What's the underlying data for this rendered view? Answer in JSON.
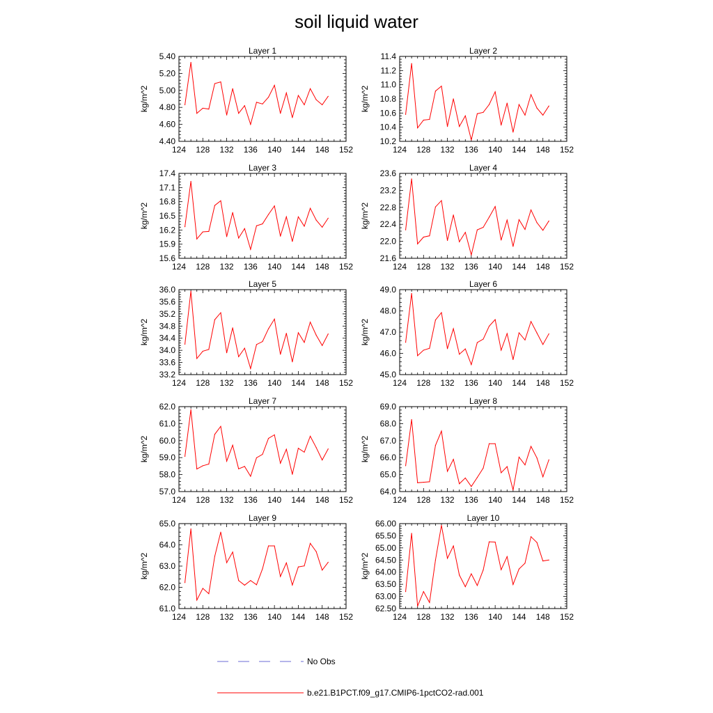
{
  "title": "soil liquid water",
  "legend": {
    "no_obs_label": "No Obs",
    "series_label": "b.e21.B1PCT.f09_g17.CMIP6-1pctCO2-rad.001",
    "no_obs_color": "#6b6bd6",
    "series_color": "#ff0000"
  },
  "colors": {
    "line": "#ff0000",
    "axis": "#000000"
  },
  "chart_data": [
    {
      "type": "line",
      "title": "Layer 1",
      "ylabel": "kg/m^2",
      "xlim": [
        124,
        152
      ],
      "xticks": [
        "124",
        "128",
        "132",
        "136",
        "140",
        "144",
        "148",
        "152"
      ],
      "ylim": [
        4.4,
        5.4
      ],
      "yticks": [
        "4.40",
        "4.60",
        "4.80",
        "5.00",
        "5.20",
        "5.40"
      ],
      "x": [
        125,
        126,
        127,
        128,
        129,
        130,
        131,
        132,
        133,
        134,
        135,
        136,
        137,
        138,
        139,
        140,
        141,
        142,
        143,
        144,
        145,
        146,
        147,
        148,
        149
      ],
      "y": [
        4.83,
        5.33,
        4.73,
        4.79,
        4.78,
        5.08,
        5.1,
        4.71,
        5.02,
        4.73,
        4.82,
        4.6,
        4.86,
        4.84,
        4.92,
        5.06,
        4.73,
        4.97,
        4.68,
        4.94,
        4.83,
        5.02,
        4.89,
        4.83,
        4.93
      ]
    },
    {
      "type": "line",
      "title": "Layer 2",
      "ylabel": "kg/m^2",
      "xlim": [
        124,
        152
      ],
      "xticks": [
        "124",
        "128",
        "132",
        "136",
        "140",
        "144",
        "148",
        "152"
      ],
      "ylim": [
        10.2,
        11.4
      ],
      "yticks": [
        "10.2",
        "10.4",
        "10.6",
        "10.8",
        "11.0",
        "11.2",
        "11.4"
      ],
      "x": [
        125,
        126,
        127,
        128,
        129,
        130,
        131,
        132,
        133,
        134,
        135,
        136,
        137,
        138,
        139,
        140,
        141,
        142,
        143,
        144,
        145,
        146,
        147,
        148,
        149
      ],
      "y": [
        10.58,
        11.3,
        10.39,
        10.5,
        10.51,
        10.91,
        10.98,
        10.41,
        10.8,
        10.41,
        10.56,
        10.22,
        10.59,
        10.61,
        10.72,
        10.9,
        10.43,
        10.74,
        10.33,
        10.72,
        10.57,
        10.86,
        10.67,
        10.57,
        10.7
      ]
    },
    {
      "type": "line",
      "title": "Layer 3",
      "ylabel": "kg/m^2",
      "xlim": [
        124,
        152
      ],
      "xticks": [
        "124",
        "128",
        "132",
        "136",
        "140",
        "144",
        "148",
        "152"
      ],
      "ylim": [
        15.6,
        17.4
      ],
      "yticks": [
        "15.6",
        "15.9",
        "16.2",
        "16.5",
        "16.8",
        "17.1",
        "17.4"
      ],
      "x": [
        125,
        126,
        127,
        128,
        129,
        130,
        131,
        132,
        133,
        134,
        135,
        136,
        137,
        138,
        139,
        140,
        141,
        142,
        143,
        144,
        145,
        146,
        147,
        148,
        149
      ],
      "y": [
        16.27,
        17.23,
        16.01,
        16.16,
        16.17,
        16.72,
        16.82,
        16.06,
        16.57,
        16.03,
        16.23,
        15.79,
        16.29,
        16.33,
        16.53,
        16.71,
        16.07,
        16.48,
        15.96,
        16.48,
        16.28,
        16.66,
        16.41,
        16.26,
        16.45
      ]
    },
    {
      "type": "line",
      "title": "Layer 4",
      "ylabel": "kg/m^2",
      "xlim": [
        124,
        152
      ],
      "xticks": [
        "124",
        "128",
        "132",
        "136",
        "140",
        "144",
        "148",
        "152"
      ],
      "ylim": [
        21.6,
        23.6
      ],
      "yticks": [
        "21.6",
        "22.0",
        "22.4",
        "22.8",
        "23.2",
        "23.6"
      ],
      "x": [
        125,
        126,
        127,
        128,
        129,
        130,
        131,
        132,
        133,
        134,
        135,
        136,
        137,
        138,
        139,
        140,
        141,
        142,
        143,
        144,
        145,
        146,
        147,
        148,
        149
      ],
      "y": [
        22.27,
        23.47,
        21.94,
        22.1,
        22.13,
        22.81,
        22.96,
        22.02,
        22.62,
        21.99,
        22.21,
        21.68,
        22.27,
        22.33,
        22.57,
        22.82,
        22.03,
        22.5,
        21.88,
        22.51,
        22.28,
        22.74,
        22.44,
        22.26,
        22.48
      ]
    },
    {
      "type": "line",
      "title": "Layer 5",
      "ylabel": "kg/m^2",
      "xlim": [
        124,
        152
      ],
      "xticks": [
        "124",
        "128",
        "132",
        "136",
        "140",
        "144",
        "148",
        "152"
      ],
      "ylim": [
        33.2,
        36.0
      ],
      "yticks": [
        "33.2",
        "33.6",
        "34.0",
        "34.4",
        "34.8",
        "35.2",
        "35.6",
        "36.0"
      ],
      "x": [
        125,
        126,
        127,
        128,
        129,
        130,
        131,
        132,
        133,
        134,
        135,
        136,
        137,
        138,
        139,
        140,
        141,
        142,
        143,
        144,
        145,
        146,
        147,
        148,
        149
      ],
      "y": [
        34.2,
        35.95,
        33.73,
        33.97,
        34.03,
        35.01,
        35.24,
        33.92,
        34.74,
        33.79,
        34.07,
        33.4,
        34.19,
        34.29,
        34.71,
        35.03,
        33.87,
        34.56,
        33.62,
        34.58,
        34.26,
        34.93,
        34.5,
        34.16,
        34.54
      ]
    },
    {
      "type": "line",
      "title": "Layer 6",
      "ylabel": "kg/m^2",
      "xlim": [
        124,
        152
      ],
      "xticks": [
        "124",
        "128",
        "132",
        "136",
        "140",
        "144",
        "148",
        "152"
      ],
      "ylim": [
        45.0,
        49.0
      ],
      "yticks": [
        "45.0",
        "46.0",
        "47.0",
        "48.0",
        "49.0"
      ],
      "x": [
        125,
        126,
        127,
        128,
        129,
        130,
        131,
        132,
        133,
        134,
        135,
        136,
        137,
        138,
        139,
        140,
        141,
        142,
        143,
        144,
        145,
        146,
        147,
        148,
        149
      ],
      "y": [
        46.52,
        48.82,
        45.89,
        46.15,
        46.24,
        47.57,
        47.92,
        46.22,
        47.16,
        45.96,
        46.21,
        45.47,
        46.51,
        46.67,
        47.28,
        47.59,
        46.15,
        46.93,
        45.71,
        46.97,
        46.63,
        47.5,
        46.96,
        46.42,
        46.92
      ]
    },
    {
      "type": "line",
      "title": "Layer 7",
      "ylabel": "kg/m^2",
      "xlim": [
        124,
        152
      ],
      "xticks": [
        "124",
        "128",
        "132",
        "136",
        "140",
        "144",
        "148",
        "152"
      ],
      "ylim": [
        57.0,
        62.0
      ],
      "yticks": [
        "57.0",
        "58.0",
        "59.0",
        "60.0",
        "61.0",
        "62.0"
      ],
      "x": [
        125,
        126,
        127,
        128,
        129,
        130,
        131,
        132,
        133,
        134,
        135,
        136,
        137,
        138,
        139,
        140,
        141,
        142,
        143,
        144,
        145,
        146,
        147,
        148,
        149
      ],
      "y": [
        59.07,
        61.82,
        58.33,
        58.52,
        58.62,
        60.37,
        60.84,
        58.79,
        59.73,
        58.34,
        58.48,
        57.9,
        58.99,
        59.19,
        60.13,
        60.34,
        58.67,
        59.49,
        58.02,
        59.55,
        59.32,
        60.26,
        59.59,
        58.86,
        59.51
      ]
    },
    {
      "type": "line",
      "title": "Layer 8",
      "ylabel": "kg/m^2",
      "xlim": [
        124,
        152
      ],
      "xticks": [
        "124",
        "128",
        "132",
        "136",
        "140",
        "144",
        "148",
        "152"
      ],
      "ylim": [
        64.0,
        69.0
      ],
      "yticks": [
        "64.0",
        "65.0",
        "66.0",
        "67.0",
        "68.0",
        "69.0"
      ],
      "x": [
        125,
        126,
        127,
        128,
        129,
        130,
        131,
        132,
        133,
        134,
        135,
        136,
        137,
        138,
        139,
        140,
        141,
        142,
        143,
        144,
        145,
        146,
        147,
        148,
        149
      ],
      "y": [
        65.52,
        68.24,
        64.52,
        64.55,
        64.58,
        66.72,
        67.56,
        65.19,
        65.9,
        64.46,
        64.8,
        64.3,
        64.83,
        65.38,
        66.82,
        66.82,
        65.11,
        65.47,
        64.09,
        66.03,
        65.57,
        66.66,
        65.98,
        64.87,
        65.87
      ]
    },
    {
      "type": "line",
      "title": "Layer 9",
      "ylabel": "kg/m^2",
      "xlim": [
        124,
        152
      ],
      "xticks": [
        "124",
        "128",
        "132",
        "136",
        "140",
        "144",
        "148",
        "152"
      ],
      "ylim": [
        61.0,
        65.0
      ],
      "yticks": [
        "61.0",
        "62.0",
        "63.0",
        "64.0",
        "65.0"
      ],
      "x": [
        125,
        126,
        127,
        128,
        129,
        130,
        131,
        132,
        133,
        134,
        135,
        136,
        137,
        138,
        139,
        140,
        141,
        142,
        143,
        144,
        145,
        146,
        147,
        148,
        149
      ],
      "y": [
        62.22,
        64.75,
        61.4,
        61.95,
        61.7,
        63.46,
        64.6,
        63.16,
        63.66,
        62.32,
        62.1,
        62.32,
        62.12,
        62.87,
        63.95,
        63.95,
        62.51,
        63.15,
        62.11,
        62.96,
        63.01,
        64.07,
        63.68,
        62.81,
        63.18
      ]
    },
    {
      "type": "line",
      "title": "Layer 10",
      "ylabel": "kg/m^2",
      "xlim": [
        124,
        152
      ],
      "xticks": [
        "124",
        "128",
        "132",
        "136",
        "140",
        "144",
        "148",
        "152"
      ],
      "ylim": [
        62.5,
        66.0
      ],
      "yticks": [
        "62.50",
        "63.00",
        "63.50",
        "64.00",
        "64.50",
        "65.00",
        "65.50",
        "66.00"
      ],
      "x": [
        125,
        126,
        127,
        128,
        129,
        130,
        131,
        132,
        133,
        134,
        135,
        136,
        137,
        138,
        139,
        140,
        141,
        142,
        143,
        144,
        145,
        146,
        147,
        148,
        149
      ],
      "y": [
        63.2,
        65.6,
        62.6,
        63.2,
        62.75,
        64.5,
        65.93,
        64.57,
        65.08,
        63.88,
        63.4,
        63.93,
        63.45,
        64.09,
        65.25,
        65.24,
        64.1,
        64.64,
        63.49,
        64.13,
        64.37,
        65.46,
        65.22,
        64.46,
        64.5
      ]
    }
  ]
}
